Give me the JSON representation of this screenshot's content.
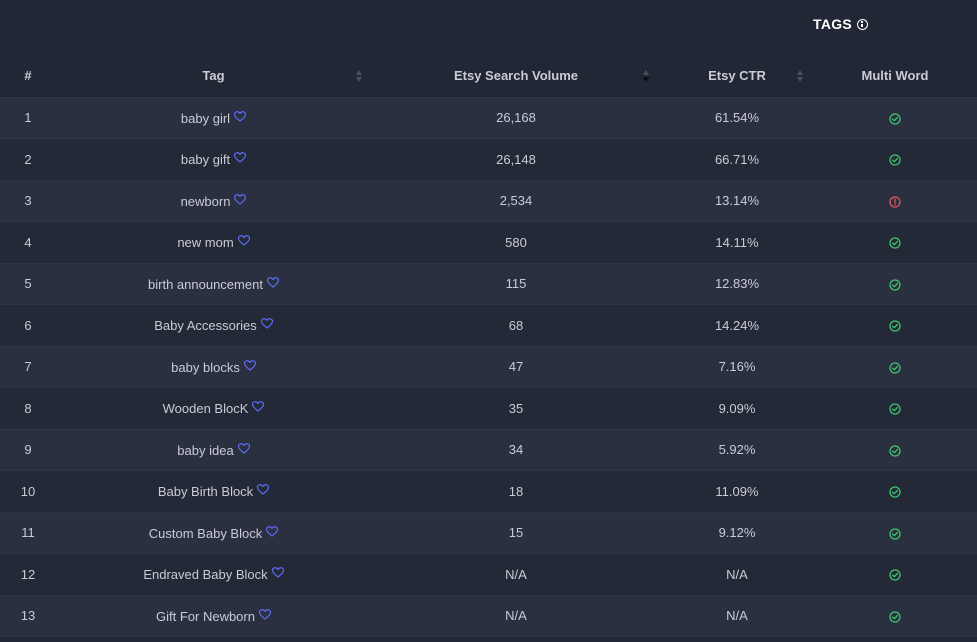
{
  "header": {
    "title": "TAGS",
    "title_icon": "info-icon"
  },
  "columns": {
    "rank": "#",
    "tag": "Tag",
    "volume": "Etsy Search Volume",
    "ctr": "Etsy CTR",
    "multi": "Multi Word"
  },
  "sort_state": {
    "tag": "none",
    "volume": "descending",
    "ctr": "none"
  },
  "colors": {
    "background": "#222735",
    "row_odd": "#2b3040",
    "row_even": "#242938",
    "heart": "#5b6cf5",
    "check": "#3ec46d",
    "warning": "#e25563"
  },
  "rows": [
    {
      "rank": "1",
      "tag": "baby girl",
      "volume": "26,168",
      "ctr": "61.54%",
      "multi": "check"
    },
    {
      "rank": "2",
      "tag": "baby gift",
      "volume": "26,148",
      "ctr": "66.71%",
      "multi": "check"
    },
    {
      "rank": "3",
      "tag": "newborn",
      "volume": "2,534",
      "ctr": "13.14%",
      "multi": "warning"
    },
    {
      "rank": "4",
      "tag": "new mom",
      "volume": "580",
      "ctr": "14.11%",
      "multi": "check"
    },
    {
      "rank": "5",
      "tag": "birth announcement",
      "volume": "115",
      "ctr": "12.83%",
      "multi": "check"
    },
    {
      "rank": "6",
      "tag": "Baby Accessories",
      "volume": "68",
      "ctr": "14.24%",
      "multi": "check"
    },
    {
      "rank": "7",
      "tag": "baby blocks",
      "volume": "47",
      "ctr": "7.16%",
      "multi": "check"
    },
    {
      "rank": "8",
      "tag": "Wooden BlocK",
      "volume": "35",
      "ctr": "9.09%",
      "multi": "check"
    },
    {
      "rank": "9",
      "tag": "baby idea",
      "volume": "34",
      "ctr": "5.92%",
      "multi": "check"
    },
    {
      "rank": "10",
      "tag": "Baby Birth Block",
      "volume": "18",
      "ctr": "11.09%",
      "multi": "check"
    },
    {
      "rank": "11",
      "tag": "Custom Baby Block",
      "volume": "15",
      "ctr": "9.12%",
      "multi": "check"
    },
    {
      "rank": "12",
      "tag": "Endraved Baby Block",
      "volume": "N/A",
      "ctr": "N/A",
      "multi": "check"
    },
    {
      "rank": "13",
      "tag": "Gift For Newborn",
      "volume": "N/A",
      "ctr": "N/A",
      "multi": "check"
    }
  ]
}
